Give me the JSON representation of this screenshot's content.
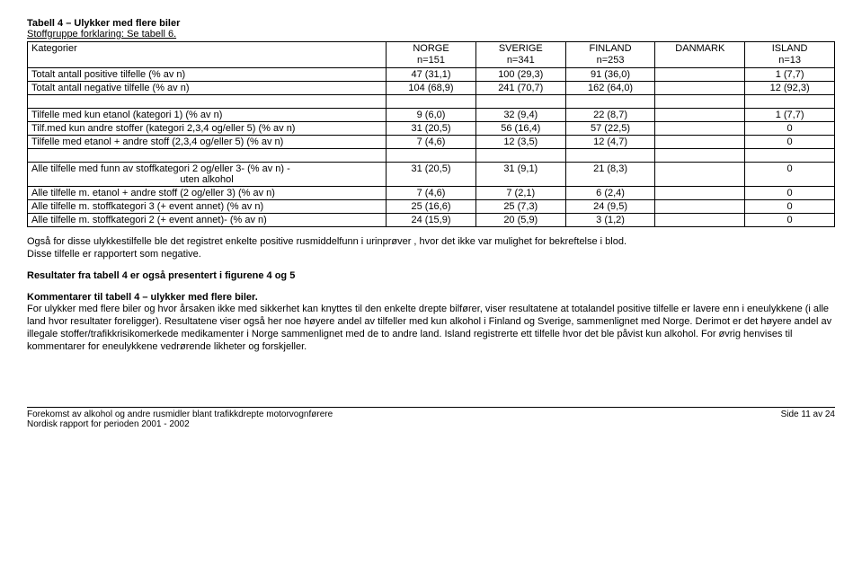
{
  "title": {
    "line1": "Tabell  4 – Ulykker med flere biler",
    "line2": "Stoffgruppe forklaring: Se tabell 6."
  },
  "table": {
    "header": {
      "cat": "Kategorier",
      "c1a": "NORGE",
      "c1b": "n=151",
      "c2a": "SVERIGE",
      "c2b": "n=341",
      "c3a": "FINLAND",
      "c3b": "n=253",
      "c4a": "DANMARK",
      "c5a": "ISLAND",
      "c5b": "n=13"
    },
    "rows": [
      {
        "label": "Totalt antall  positive  tilfelle  (% av n)",
        "c1": "47 (31,1)",
        "c2": "100 (29,3)",
        "c3": "91 (36,0)",
        "c4": "",
        "c5": "1 (7,7)"
      },
      {
        "label": "Totalt antall negative tilfelle (% av n)",
        "c1": "104 (68,9)",
        "c2": "241 (70,7)",
        "c3": "162 (64,0)",
        "c4": "",
        "c5": "12 (92,3)"
      },
      {
        "empty": true
      },
      {
        "label": "Tilfelle med kun etanol (kategori 1)  (% av n)",
        "c1": "9 (6,0)",
        "c2": "32 (9,4)",
        "c3": "22 (8,7)",
        "c4": "",
        "c5": "1 (7,7)"
      },
      {
        "label": "Tilf.med kun andre stoffer (kategori 2,3,4 og/eller 5) (% av n)",
        "c1": "31 (20,5)",
        "c2": "56 (16,4)",
        "c3": "57 (22,5)",
        "c4": "",
        "c5": "0"
      },
      {
        "label": "Tilfelle med etanol + andre stoff (2,3,4 og/eller 5) (% av n)",
        "c1": "7 (4,6)",
        "c2": "12 (3,5)",
        "c3": "12 (4,7)",
        "c4": "",
        "c5": "0"
      },
      {
        "empty": true
      },
      {
        "label": "Alle tilfelle med funn av stoffkategori 2 og/eller 3-  (% av n) -\nuten alkohol",
        "c1": "31 (20,5)",
        "c2": "31 (9,1)",
        "c3": "21 (8,3)",
        "c4": "",
        "c5": "0"
      },
      {
        "label": "Alle tilfelle m. etanol + andre stoff (2 og/eller 3)  (% av n)",
        "c1": "7 (4,6)",
        "c2": "7 (2,1)",
        "c3": "6 (2,4)",
        "c4": "",
        "c5": "0"
      },
      {
        "label": "Alle tilfelle m. stoffkategori 3 (+ event annet) (% av n)",
        "c1": "25 (16,6)",
        "c2": "25 (7,3)",
        "c3": "24 (9,5)",
        "c4": "",
        "c5": "0"
      },
      {
        "label": "Alle tilfelle m. stoffkategori 2 (+ event annet)- (% av n)",
        "c1": "24 (15,9)",
        "c2": "20 (5,9)",
        "c3": "3 (1,2)",
        "c4": "",
        "c5": "0"
      }
    ]
  },
  "paragraphs": {
    "p1": "Også for disse ulykkestilfelle ble det registret enkelte positive rusmiddelfunn i urinprøver , hvor det ikke var mulighet for bekreftelse i blod.",
    "p1b": "Disse tilfelle er rapportert  som negative.",
    "p2": "Resultater fra tabell 4 er også presentert i figurene 4 og 5",
    "p3h": "Kommentarer til tabell 4 – ulykker med flere biler.",
    "p3": "For ulykker med flere biler og hvor årsaken ikke med sikkerhet kan knyttes til den enkelte drepte bilfører, viser resultatene at totalandel positive tilfelle er lavere  enn i eneulykkene (i alle land hvor resultater foreligger).  Resultatene viser også her noe høyere andel av tilfeller med kun alkohol i Finland og Sverige, sammenlignet med Norge. Derimot er det høyere andel av illegale stoffer/trafikkrisikomerkede medikamenter i Norge sammenlignet med de to andre land. Island registrerte ett tilfelle hvor det ble påvist kun alkohol. For øvrig henvises til  kommentarer for eneulykkene vedrørende likheter og forskjeller."
  },
  "footer": {
    "left1": "Forekomst av alkohol og andre rusmidler blant trafikkdrepte motorvognførere",
    "left2": "Nordisk rapport for perioden 2001 - 2002",
    "right": "Side 11 av 24"
  }
}
